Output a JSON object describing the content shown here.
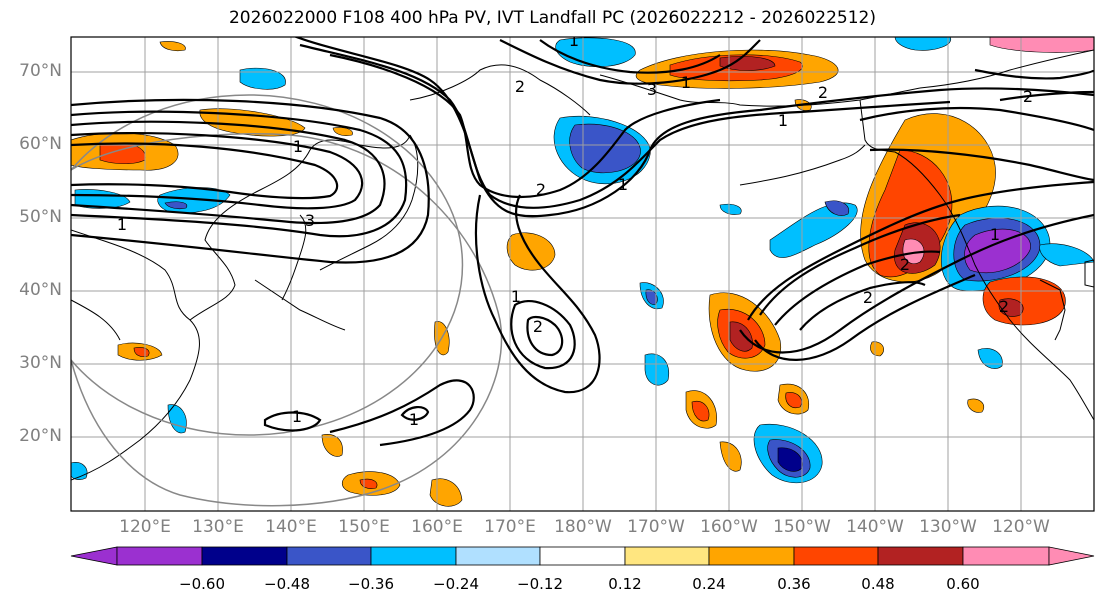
{
  "title": "2026022000 F108 400 hPa PV, IVT Landfall PC (2026022212 - 2026022512)",
  "lat_labels": [
    "70°N",
    "60°N",
    "50°N",
    "40°N",
    "30°N",
    "20°N"
  ],
  "lon_labels": [
    "120°E",
    "130°E",
    "140°E",
    "150°E",
    "160°E",
    "170°E",
    "180°W",
    "170°W",
    "160°W",
    "150°W",
    "140°W",
    "130°W",
    "120°W"
  ],
  "colorbar": {
    "ticks": [
      "−0.60",
      "−0.48",
      "−0.36",
      "−0.24",
      "−0.12",
      "0.12",
      "0.24",
      "0.36",
      "0.48",
      "0.60"
    ],
    "colors": [
      "#9b30d0",
      "#00008b",
      "#3a55c8",
      "#00bfff",
      "#b0e0ff",
      "#ffffff",
      "#ffe680",
      "#ffa500",
      "#ff4500",
      "#b22222",
      "#ff8cb4"
    ]
  },
  "contour_labels": [
    "1",
    "2",
    "3",
    "1",
    "2",
    "1",
    "1",
    "2",
    "1",
    "3",
    "2",
    "1",
    "2",
    "2",
    "1",
    "2",
    "2",
    "1",
    "1",
    "1"
  ]
}
